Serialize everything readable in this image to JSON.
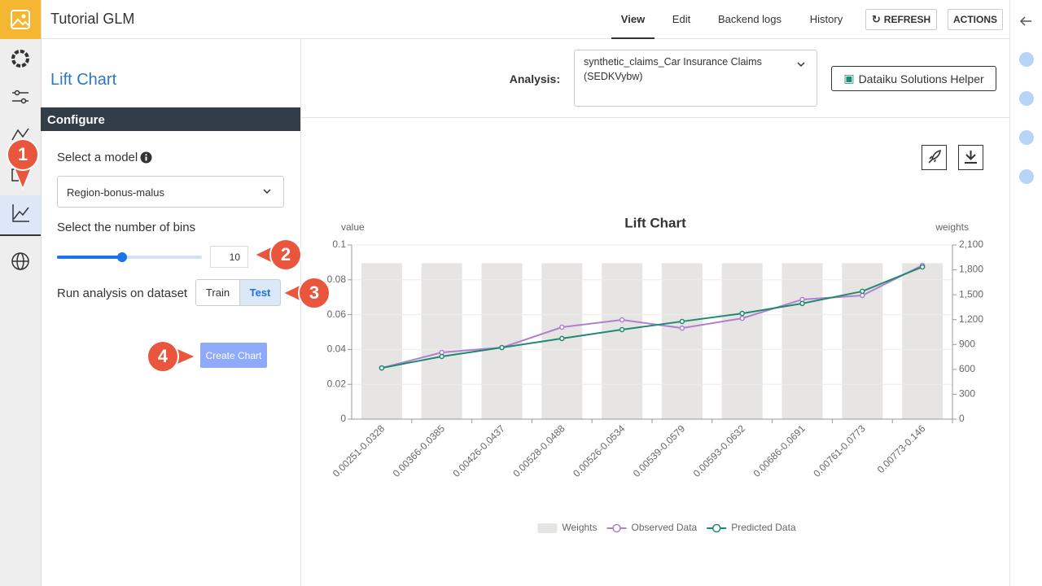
{
  "header": {
    "title": "Tutorial GLM",
    "tabs": [
      "View",
      "Edit",
      "Backend logs",
      "History"
    ],
    "refresh": "REFRESH",
    "actions": "ACTIONS"
  },
  "panel": {
    "title": "Lift Chart",
    "section": "Configure",
    "model_label": "Select a model",
    "model_value": "Region-bonus-malus",
    "bins_label": "Select the number of bins",
    "bins_value": 10,
    "dataset_label": "Run analysis on dataset",
    "dataset_options": [
      "Train",
      "Test"
    ],
    "create_button": "Create Chart"
  },
  "callouts": [
    "1",
    "2",
    "3",
    "4"
  ],
  "analysis": {
    "label": "Analysis:",
    "value": "synthetic_claims_Car Insurance Claims (SEDKVybw)",
    "helper": "Dataiku Solutions Helper"
  },
  "chart_data": {
    "type": "combo",
    "title": "Lift Chart",
    "ylabel": "value",
    "y2label": "weights",
    "categories": [
      "0.00251-0.0328",
      "0.00366-0.0385",
      "0.00426-0.0437",
      "0.00528-0.0488",
      "0.00526-0.0534",
      "0.00539-0.0579",
      "0.00593-0.0632",
      "0.00686-0.0691",
      "0.00761-0.0773",
      "0.00773-0.146"
    ],
    "ylim": [
      0,
      0.1
    ],
    "yticks": [
      0,
      0.02,
      0.04,
      0.06,
      0.08,
      0.1
    ],
    "y2lim": [
      0,
      2100
    ],
    "y2ticks": [
      0,
      300,
      600,
      900,
      {
        "value": 1200,
        "label": "1,200"
      },
      {
        "value": 1500,
        "label": "1,500"
      },
      {
        "value": 1800,
        "label": "1,800"
      },
      {
        "value": 2100,
        "label": "2,100"
      }
    ],
    "grid": true,
    "legend": "bottom",
    "series": [
      {
        "name": "Weights",
        "type": "bar",
        "axis": "y2",
        "color": "#e6e5e4",
        "values": [
          1880,
          1880,
          1880,
          1880,
          1880,
          1880,
          1880,
          1880,
          1880,
          1880
        ]
      },
      {
        "name": "Observed Data",
        "type": "line",
        "color": "#b07fcf",
        "values": [
          0.0294,
          0.0383,
          0.0411,
          0.0528,
          0.057,
          0.0523,
          0.0579,
          0.0687,
          0.071,
          0.0883
        ]
      },
      {
        "name": "Predicted Data",
        "type": "line",
        "color": "#1f8a70",
        "values": [
          0.0294,
          0.036,
          0.0411,
          0.0463,
          0.0514,
          0.0561,
          0.0607,
          0.0664,
          0.0734,
          0.0874
        ]
      }
    ]
  }
}
